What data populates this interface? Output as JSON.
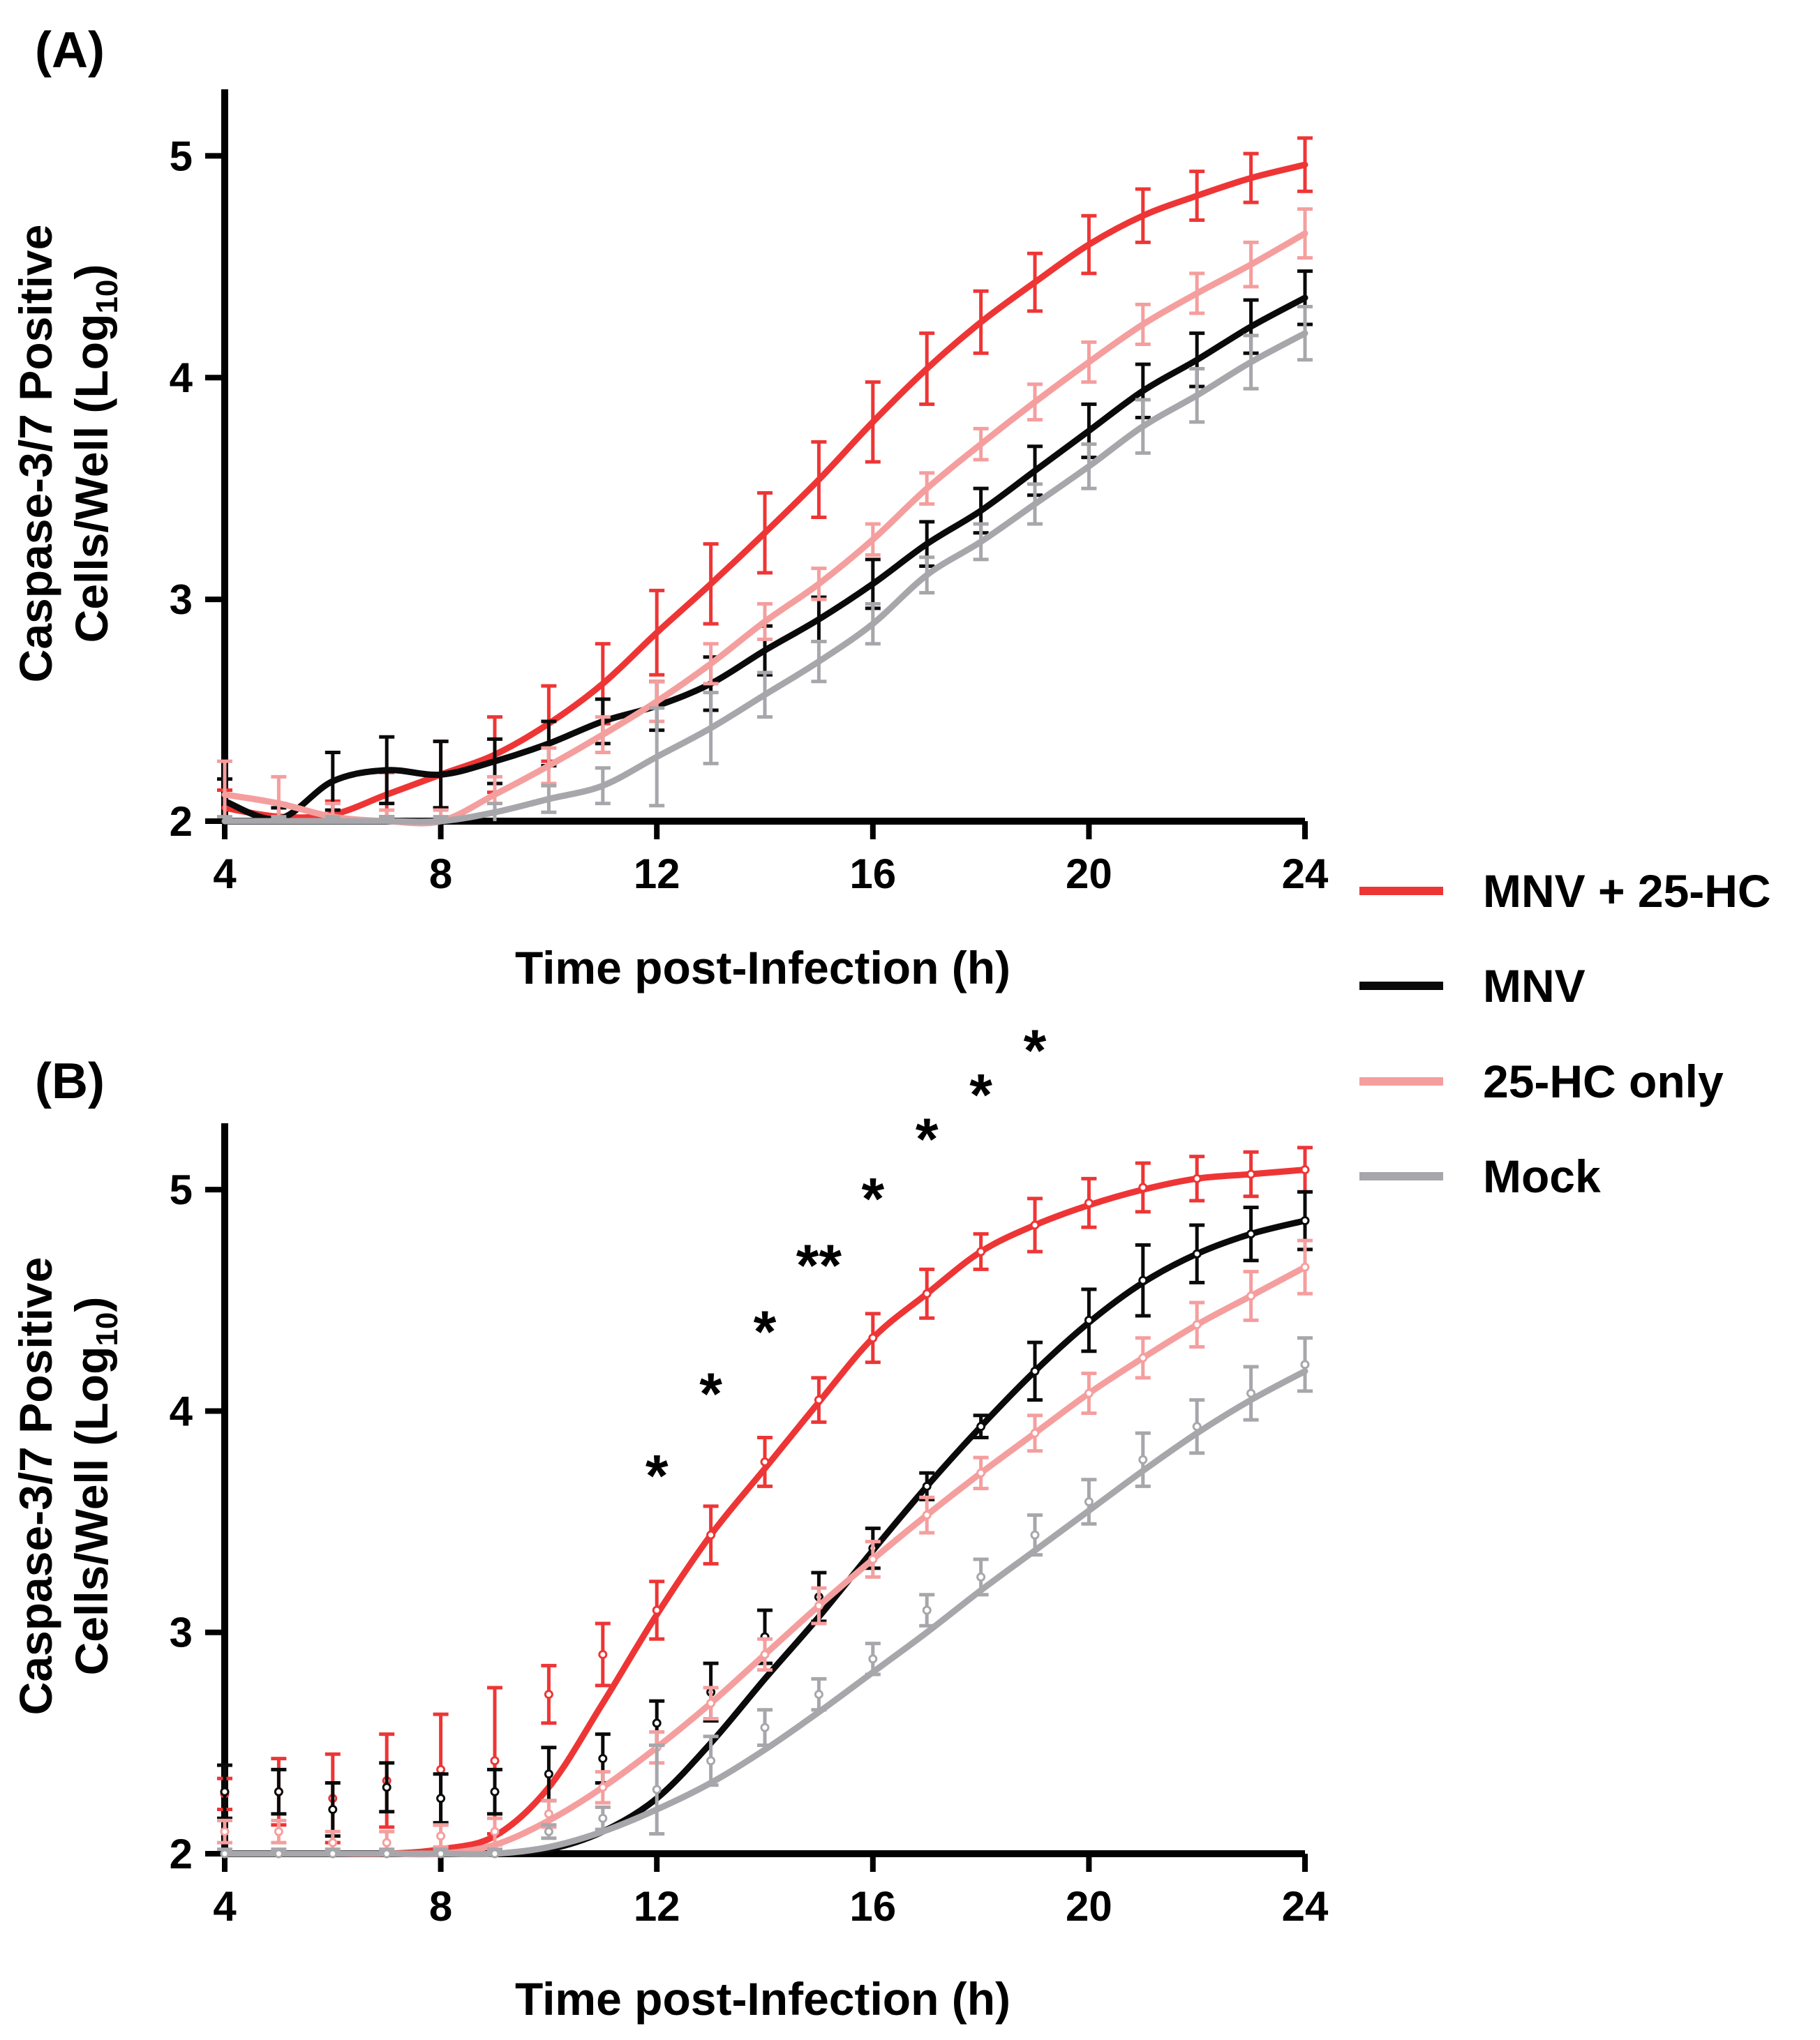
{
  "figure": {
    "legend": [
      {
        "label": "MNV + 25-HC",
        "color": "#ee3535"
      },
      {
        "label": "MNV",
        "color": "#0a0a0a"
      },
      {
        "label": "25-HC only",
        "color": "#f59e9e"
      },
      {
        "label": "Mock",
        "color": "#a7a7ab"
      }
    ]
  },
  "chart_data": [
    {
      "panel": "(A)",
      "type": "line",
      "xlabel": "Time post-Infection (h)",
      "ylabel_line1": "Caspase-3/7  Positive",
      "ylabel_line2": "Cells/Well  (Log",
      "ylabel_sub": "10",
      "ylabel_close": ")",
      "xlim": [
        4,
        24
      ],
      "ylim": [
        2,
        5.3
      ],
      "xticks": [
        "4",
        "8",
        "12",
        "16",
        "20",
        "24"
      ],
      "yticks": [
        "2",
        "3",
        "4",
        "5"
      ],
      "x": [
        4,
        5,
        6,
        7,
        8,
        9,
        10,
        11,
        12,
        13,
        14,
        15,
        16,
        17,
        18,
        19,
        20,
        21,
        22,
        23,
        24
      ],
      "series": [
        {
          "name": "MNV + 25-HC",
          "color": "#ee3535",
          "values": [
            2.06,
            2.02,
            2.03,
            2.12,
            2.21,
            2.3,
            2.44,
            2.62,
            2.85,
            3.07,
            3.3,
            3.54,
            3.8,
            4.04,
            4.25,
            4.43,
            4.6,
            4.73,
            4.82,
            4.9,
            4.96
          ],
          "err": [
            0.08,
            0.06,
            0.06,
            0.1,
            0.15,
            0.17,
            0.17,
            0.18,
            0.19,
            0.18,
            0.18,
            0.17,
            0.18,
            0.16,
            0.14,
            0.13,
            0.13,
            0.12,
            0.11,
            0.11,
            0.12
          ]
        },
        {
          "name": "MNV",
          "color": "#0a0a0a",
          "values": [
            2.09,
            2.01,
            2.18,
            2.23,
            2.21,
            2.27,
            2.35,
            2.45,
            2.52,
            2.62,
            2.77,
            2.91,
            3.07,
            3.25,
            3.4,
            3.58,
            3.76,
            3.94,
            4.08,
            4.23,
            4.36
          ],
          "err": [
            0.1,
            0.05,
            0.13,
            0.15,
            0.15,
            0.1,
            0.1,
            0.1,
            0.11,
            0.12,
            0.11,
            0.1,
            0.11,
            0.1,
            0.1,
            0.11,
            0.12,
            0.12,
            0.12,
            0.12,
            0.12
          ]
        },
        {
          "name": "25-HC only",
          "color": "#f59e9e",
          "values": [
            2.12,
            2.08,
            2.02,
            2.0,
            2.0,
            2.12,
            2.25,
            2.39,
            2.54,
            2.71,
            2.9,
            3.07,
            3.27,
            3.5,
            3.7,
            3.89,
            4.07,
            4.24,
            4.38,
            4.51,
            4.65
          ],
          "err": [
            0.15,
            0.12,
            0.06,
            0.05,
            0.05,
            0.08,
            0.08,
            0.08,
            0.09,
            0.09,
            0.08,
            0.07,
            0.07,
            0.07,
            0.07,
            0.08,
            0.09,
            0.09,
            0.09,
            0.1,
            0.11
          ]
        },
        {
          "name": "Mock",
          "color": "#a7a7ab",
          "values": [
            2.0,
            2.0,
            2.0,
            2.0,
            2.0,
            2.04,
            2.1,
            2.16,
            2.29,
            2.42,
            2.57,
            2.72,
            2.89,
            3.11,
            3.26,
            3.43,
            3.6,
            3.78,
            3.92,
            4.07,
            4.2
          ],
          "err": [
            0.02,
            0.02,
            0.02,
            0.02,
            0.02,
            0.04,
            0.06,
            0.08,
            0.22,
            0.16,
            0.1,
            0.09,
            0.09,
            0.08,
            0.08,
            0.09,
            0.1,
            0.12,
            0.12,
            0.12,
            0.12
          ]
        }
      ]
    },
    {
      "panel": "(B)",
      "type": "line",
      "xlabel": "Time post-Infection (h)",
      "ylabel_line1": "Caspase-3/7  Positive",
      "ylabel_line2": "Cells/Well  (Log",
      "ylabel_sub": "10",
      "ylabel_close": ")",
      "xlim": [
        4,
        24
      ],
      "ylim": [
        2,
        5.3
      ],
      "xticks": [
        "4",
        "8",
        "12",
        "16",
        "20",
        "24"
      ],
      "yticks": [
        "2",
        "3",
        "4",
        "5"
      ],
      "x": [
        4,
        5,
        6,
        7,
        8,
        9,
        10,
        11,
        12,
        13,
        14,
        15,
        16,
        17,
        18,
        19,
        20,
        21,
        22,
        23,
        24
      ],
      "series": [
        {
          "name": "MNV + 25-HC",
          "color": "#ee3535",
          "values": [
            2.0,
            2.0,
            2.0,
            2.0,
            2.02,
            2.08,
            2.3,
            2.68,
            3.08,
            3.44,
            3.74,
            4.04,
            4.33,
            4.53,
            4.72,
            4.84,
            4.93,
            5.0,
            5.05,
            5.07,
            5.09
          ],
          "err": [
            0.02,
            0.02,
            0.02,
            0.03,
            0.05,
            0.08,
            0.13,
            0.14,
            0.13,
            0.13,
            0.13,
            0.11,
            0.11,
            0.11,
            0.09,
            0.1,
            0.11,
            0.11,
            0.1,
            0.09,
            0.09
          ],
          "points": [
            2.27,
            2.28,
            2.25,
            2.33,
            2.38,
            2.42,
            2.72,
            2.9,
            3.1,
            3.44,
            3.77,
            4.05,
            4.33,
            4.53,
            4.72,
            4.84,
            4.94,
            5.01,
            5.05,
            5.07,
            5.09
          ],
          "point_err": [
            0.07,
            0.15,
            0.2,
            0.21,
            0.25,
            0.33,
            0.13,
            0.14,
            0.13,
            0.13,
            0.11,
            0.1,
            0.11,
            0.11,
            0.08,
            0.12,
            0.11,
            0.11,
            0.1,
            0.1,
            0.1
          ]
        },
        {
          "name": "MNV",
          "color": "#0a0a0a",
          "values": [
            2.0,
            2.0,
            2.0,
            2.0,
            2.0,
            2.0,
            2.02,
            2.1,
            2.25,
            2.5,
            2.79,
            3.07,
            3.37,
            3.66,
            3.93,
            4.18,
            4.4,
            4.58,
            4.71,
            4.8,
            4.86
          ],
          "err": [
            0.02,
            0.02,
            0.02,
            0.02,
            0.02,
            0.02,
            0.03,
            0.05,
            0.08,
            0.1,
            0.12,
            0.1,
            0.1,
            0.05,
            0.05,
            0.13,
            0.14,
            0.16,
            0.13,
            0.12,
            0.13
          ],
          "points": [
            2.28,
            2.28,
            2.2,
            2.3,
            2.25,
            2.28,
            2.36,
            2.43,
            2.59,
            2.73,
            2.98,
            3.16,
            3.38,
            3.66,
            3.93,
            4.18,
            4.41,
            4.59,
            4.71,
            4.8,
            4.86
          ],
          "point_err": [
            0.12,
            0.1,
            0.12,
            0.11,
            0.11,
            0.1,
            0.12,
            0.11,
            0.1,
            0.13,
            0.12,
            0.11,
            0.09,
            0.06,
            0.05,
            0.13,
            0.14,
            0.16,
            0.13,
            0.12,
            0.13
          ]
        },
        {
          "name": "25-HC only",
          "color": "#f59e9e",
          "values": [
            2.0,
            2.0,
            2.0,
            2.0,
            2.0,
            2.04,
            2.15,
            2.3,
            2.48,
            2.68,
            2.9,
            3.12,
            3.33,
            3.53,
            3.72,
            3.9,
            4.08,
            4.24,
            4.39,
            4.52,
            4.65
          ],
          "err": [
            0.02,
            0.02,
            0.02,
            0.02,
            0.02,
            0.04,
            0.06,
            0.07,
            0.07,
            0.07,
            0.07,
            0.08,
            0.08,
            0.08,
            0.07,
            0.08,
            0.09,
            0.09,
            0.1,
            0.11,
            0.12
          ],
          "points": [
            2.1,
            2.1,
            2.05,
            2.05,
            2.08,
            2.1,
            2.18,
            2.3,
            2.48,
            2.68,
            2.9,
            3.12,
            3.33,
            3.53,
            3.72,
            3.9,
            4.08,
            4.24,
            4.39,
            4.52,
            4.65
          ],
          "point_err": [
            0.05,
            0.05,
            0.05,
            0.05,
            0.05,
            0.06,
            0.06,
            0.07,
            0.07,
            0.07,
            0.07,
            0.08,
            0.08,
            0.08,
            0.07,
            0.08,
            0.09,
            0.09,
            0.1,
            0.11,
            0.12
          ]
        },
        {
          "name": "Mock",
          "color": "#a7a7ab",
          "values": [
            2.0,
            2.0,
            2.0,
            2.0,
            2.0,
            2.0,
            2.03,
            2.1,
            2.2,
            2.32,
            2.47,
            2.64,
            2.82,
            3.0,
            3.19,
            3.37,
            3.55,
            3.73,
            3.9,
            4.05,
            4.18
          ],
          "err": [
            0.02,
            0.02,
            0.02,
            0.02,
            0.02,
            0.02,
            0.03,
            0.04,
            0.2,
            0.11,
            0.08,
            0.07,
            0.07,
            0.07,
            0.08,
            0.09,
            0.1,
            0.12,
            0.12,
            0.12,
            0.12
          ],
          "points": [
            2.0,
            2.0,
            2.0,
            2.0,
            2.0,
            2.0,
            2.1,
            2.16,
            2.29,
            2.42,
            2.57,
            2.72,
            2.88,
            3.1,
            3.25,
            3.44,
            3.59,
            3.78,
            3.93,
            4.08,
            4.21
          ],
          "point_err": [
            0.02,
            0.02,
            0.02,
            0.02,
            0.02,
            0.02,
            0.03,
            0.05,
            0.2,
            0.11,
            0.08,
            0.07,
            0.07,
            0.07,
            0.08,
            0.09,
            0.1,
            0.12,
            0.12,
            0.12,
            0.12
          ]
        }
      ],
      "annotations": [
        {
          "text": "*",
          "x": 12,
          "y": 3.75
        },
        {
          "text": "*",
          "x": 13,
          "y": 4.12
        },
        {
          "text": "*",
          "x": 14,
          "y": 4.4
        },
        {
          "text": "**",
          "x": 15,
          "y": 4.7
        },
        {
          "text": "*",
          "x": 16,
          "y": 5.0
        },
        {
          "text": "*",
          "x": 17,
          "y": 5.27
        },
        {
          "text": "*",
          "x": 18,
          "y": 5.47
        },
        {
          "text": "*",
          "x": 19,
          "y": 5.67
        }
      ]
    }
  ]
}
